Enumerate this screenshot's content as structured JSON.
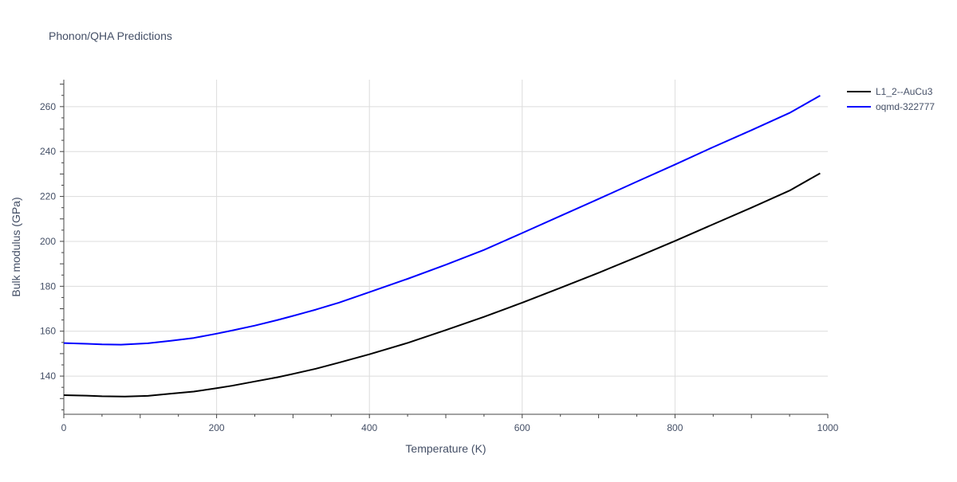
{
  "chart_data": {
    "type": "line",
    "title": "Phonon/QHA Predictions",
    "xlabel": "Temperature (K)",
    "ylabel": "Bulk modulus (GPa)",
    "xlim": [
      0,
      1000
    ],
    "ylim": [
      123,
      272
    ],
    "grid": true,
    "legend_position": "top-right",
    "x_ticks": [
      0,
      200,
      400,
      600,
      800,
      1000
    ],
    "y_ticks": [
      140,
      160,
      180,
      200,
      220,
      240,
      260
    ],
    "series": [
      {
        "name": "L1_2--AuCu3",
        "color": "#000000",
        "points": [
          [
            0,
            131.5
          ],
          [
            30,
            131.3
          ],
          [
            50,
            131.0
          ],
          [
            80,
            130.9
          ],
          [
            110,
            131.2
          ],
          [
            140,
            132.2
          ],
          [
            170,
            133.1
          ],
          [
            200,
            134.6
          ],
          [
            220,
            135.7
          ],
          [
            250,
            137.6
          ],
          [
            280,
            139.5
          ],
          [
            300,
            141.0
          ],
          [
            330,
            143.3
          ],
          [
            360,
            146.0
          ],
          [
            400,
            149.7
          ],
          [
            450,
            154.8
          ],
          [
            500,
            160.5
          ],
          [
            550,
            166.4
          ],
          [
            600,
            172.7
          ],
          [
            650,
            179.3
          ],
          [
            700,
            186.0
          ],
          [
            750,
            193.0
          ],
          [
            800,
            200.2
          ],
          [
            850,
            207.6
          ],
          [
            900,
            215.0
          ],
          [
            950,
            222.6
          ],
          [
            990,
            230.3
          ]
        ]
      },
      {
        "name": "oqmd-322777",
        "color": "#0000ff",
        "points": [
          [
            0,
            154.7
          ],
          [
            30,
            154.4
          ],
          [
            50,
            154.1
          ],
          [
            75,
            154.0
          ],
          [
            110,
            154.6
          ],
          [
            140,
            155.7
          ],
          [
            170,
            157.0
          ],
          [
            200,
            158.9
          ],
          [
            220,
            160.3
          ],
          [
            250,
            162.5
          ],
          [
            280,
            165.0
          ],
          [
            300,
            166.8
          ],
          [
            330,
            169.6
          ],
          [
            360,
            172.7
          ],
          [
            400,
            177.4
          ],
          [
            450,
            183.3
          ],
          [
            500,
            189.6
          ],
          [
            550,
            196.2
          ],
          [
            600,
            203.7
          ],
          [
            650,
            211.3
          ],
          [
            700,
            218.9
          ],
          [
            750,
            226.6
          ],
          [
            800,
            234.2
          ],
          [
            850,
            242.0
          ],
          [
            900,
            249.5
          ],
          [
            950,
            257.2
          ],
          [
            990,
            264.9
          ]
        ]
      }
    ]
  }
}
